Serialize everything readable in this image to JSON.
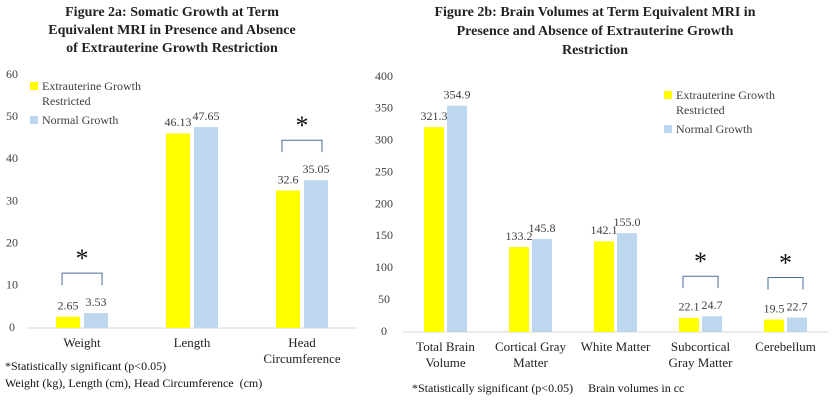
{
  "chart_data": [
    {
      "type": "bar",
      "title": [
        "Figure 2a: Somatic Growth  at Term",
        "Equivalent  MRI in Presence and Absence",
        "of Extrauterine  Growth  Restriction"
      ],
      "categories": [
        [
          "Weight"
        ],
        [
          "Length"
        ],
        [
          "Head",
          "Circumference"
        ]
      ],
      "series": [
        {
          "name": "Extrauterine Growth Restricted",
          "color": "#ffff00",
          "values": [
            2.65,
            46.13,
            32.6
          ]
        },
        {
          "name": "Normal Growth",
          "color": "#bdd7ee",
          "values": [
            3.53,
            47.65,
            35.05
          ]
        }
      ],
      "ylim": [
        0,
        60
      ],
      "yticks": [
        0,
        10,
        20,
        30,
        40,
        50,
        60
      ],
      "grid": false,
      "legend": "top-left",
      "annotations": [
        {
          "text": "*",
          "category": 0
        },
        {
          "text": "*",
          "category": 2
        }
      ],
      "notes": [
        "*Statistically significant (p<0.05)",
        "Weight (kg), Length (cm), Head Circumference  (cm)"
      ]
    },
    {
      "type": "bar",
      "title": [
        "Figure 2b: Brain Volumes at Term Equivalent  MRI in",
        "Presence and Absence of Extrauterine  Growth",
        "Restriction"
      ],
      "categories": [
        [
          "Total Brain",
          "Volume"
        ],
        [
          "Cortical Gray",
          "Matter"
        ],
        [
          "White Matter"
        ],
        [
          "Subcortical",
          "Gray Matter"
        ],
        [
          "Cerebellum"
        ]
      ],
      "series": [
        {
          "name": "Extrauterine Growth Restricted",
          "color": "#ffff00",
          "values": [
            321.3,
            133.2,
            142.1,
            22.1,
            19.5
          ]
        },
        {
          "name": "Normal Growth",
          "color": "#bdd7ee",
          "values": [
            354.9,
            145.8,
            155.0,
            24.7,
            22.7
          ],
          "value_labels": [
            "354.9",
            "145.8",
            "155.0",
            "24.7",
            "22.7"
          ]
        }
      ],
      "ylim": [
        0,
        400
      ],
      "yticks": [
        0,
        50,
        100,
        150,
        200,
        250,
        300,
        350,
        400
      ],
      "grid": false,
      "legend": "top-right",
      "annotations": [
        {
          "text": "*",
          "category": 3
        },
        {
          "text": "*",
          "category": 4
        }
      ],
      "notes": [
        "*Statistically significant (p<0.05)     Brain volumes in cc"
      ]
    }
  ]
}
